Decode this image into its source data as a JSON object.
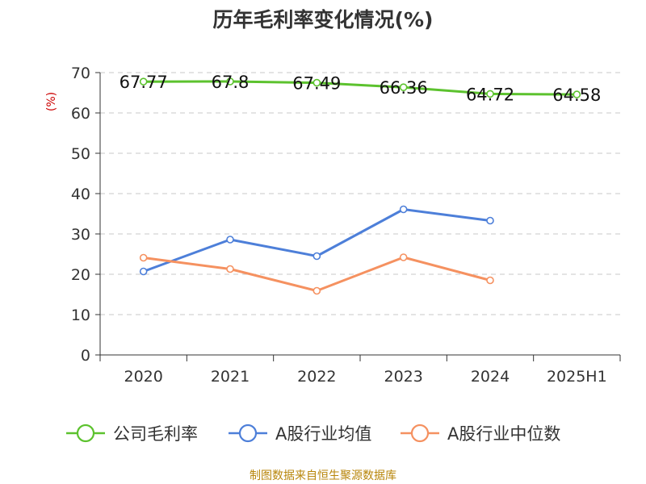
{
  "chart_data": {
    "type": "line",
    "title": "历年毛利率变化情况(%)",
    "ylabel": "(%)",
    "xlabel": "",
    "categories": [
      "2020",
      "2021",
      "2022",
      "2023",
      "2024",
      "2025H1"
    ],
    "ylim": [
      0,
      70
    ],
    "yticks": [
      0,
      10,
      20,
      30,
      40,
      50,
      60,
      70
    ],
    "grid": true,
    "legend_position": "bottom",
    "series": [
      {
        "name": "公司毛利率",
        "color": "#5cc22e",
        "values": [
          67.77,
          67.8,
          67.49,
          66.36,
          64.72,
          64.58
        ],
        "labels": [
          "67.77",
          "67.8",
          "67.49",
          "66.36",
          "64.72",
          "64.58"
        ]
      },
      {
        "name": "A股行业均值",
        "color": "#4d7fd9",
        "values": [
          20.7,
          28.6,
          24.5,
          36.1,
          33.3,
          null
        ]
      },
      {
        "name": "A股行业中位数",
        "color": "#f59160",
        "values": [
          24.1,
          21.3,
          15.9,
          24.2,
          18.5,
          null
        ]
      }
    ]
  },
  "source": "制图数据来自恒生聚源数据库"
}
